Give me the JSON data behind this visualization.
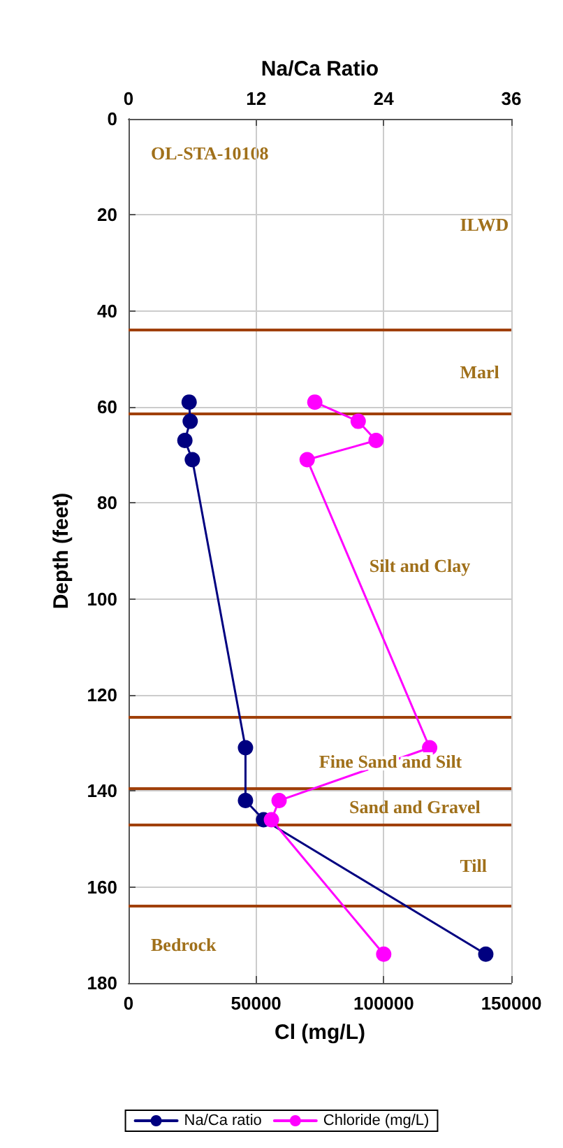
{
  "chart_data": {
    "type": "line",
    "xlabel": "Cl (mg/L)",
    "x2label": "Na/Ca Ratio",
    "ylabel": "Depth (feet)",
    "xlim": [
      0,
      150000
    ],
    "xticks": [
      0,
      50000,
      100000,
      150000
    ],
    "x2lim": [
      0,
      36
    ],
    "x2ticks": [
      0,
      12,
      24,
      36
    ],
    "ylim": [
      180,
      0
    ],
    "yticks": [
      0,
      20,
      40,
      60,
      80,
      100,
      120,
      140,
      160,
      180
    ],
    "grid": true,
    "legend": "bottom",
    "marker": "circle",
    "line_style": "solid",
    "annotations": [
      "OL-STA-10108",
      "ILWD",
      "Marl",
      "Silt and Clay",
      "Fine Sand and Silt",
      "Sand and Gravel",
      "Till",
      "Bedrock"
    ],
    "series": [
      {
        "name": "Na/Ca ratio",
        "color": "#000080",
        "axis": "x2",
        "x": [
          5.7,
          5.8,
          5.3,
          6.0,
          11.0,
          11.0,
          12.7,
          33.6
        ],
        "values": [
          59,
          63,
          67,
          71,
          131,
          142,
          146,
          174
        ]
      },
      {
        "name": "Chloride (mg/L)",
        "color": "#ff00ff",
        "x": [
          73000,
          90000,
          97000,
          70000,
          118000,
          59000,
          56000,
          100000
        ],
        "values": [
          59,
          63,
          67,
          71,
          131,
          142,
          146,
          174
        ]
      }
    ],
    "ref_lines": [
      {
        "axis": "y",
        "value": 44,
        "color": "#a0400a"
      },
      {
        "axis": "y",
        "value": 61.5,
        "color": "#a0400a"
      },
      {
        "axis": "y",
        "value": 124.5,
        "color": "#a0400a"
      },
      {
        "axis": "y",
        "value": 139.5,
        "color": "#a0400a"
      },
      {
        "axis": "y",
        "value": 147,
        "color": "#a0400a"
      },
      {
        "axis": "y",
        "value": 164,
        "color": "#a0400a"
      }
    ]
  }
}
